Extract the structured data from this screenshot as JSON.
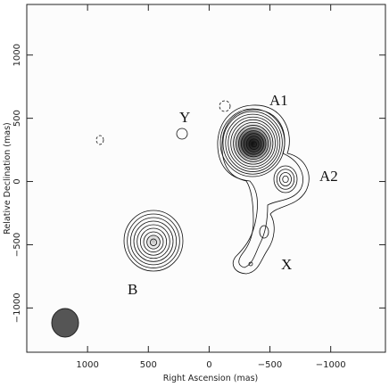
{
  "chart_data": {
    "type": "contour",
    "x_label": "Right Ascension  (mas)",
    "y_label": "Relative Declination  (mas)",
    "xlim": [
      1500,
      -1450
    ],
    "ylim": [
      -1350,
      1400
    ],
    "xticks": [
      1000,
      500,
      0,
      {
        "value": -500,
        "label": "−500"
      },
      {
        "value": -1000,
        "label": "−1000"
      }
    ],
    "yticks": [
      {
        "value": -1000,
        "label": "−1000"
      },
      {
        "value": -500,
        "label": "−500"
      },
      0,
      500,
      1000
    ],
    "annotations": [
      "A1",
      "A2",
      "Y",
      "B",
      "X"
    ]
  }
}
